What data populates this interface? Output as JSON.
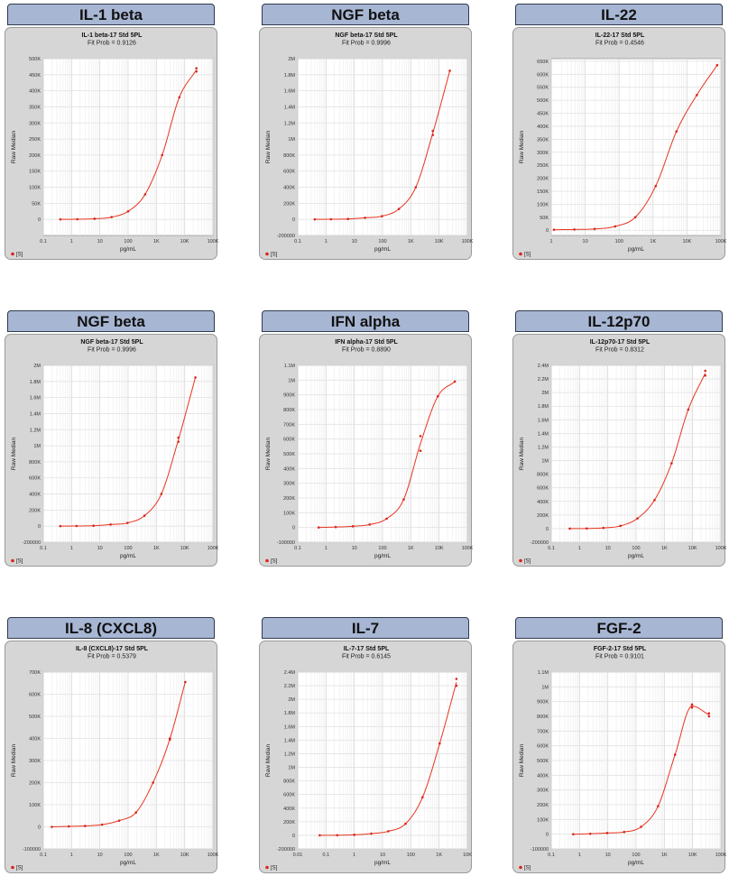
{
  "panels": [
    {
      "header": "IL-1 beta",
      "title": "IL-1 beta-17 Std 5PL",
      "fit": "Fit Prob = 0.9126"
    },
    {
      "header": "NGF beta",
      "title": "NGF beta-17 Std 5PL",
      "fit": "Fit Prob = 0.9996"
    },
    {
      "header": "IL-22",
      "title": "IL-22-17 Std 5PL",
      "fit": "Fit Prob = 0.4546"
    },
    {
      "header": "NGF beta",
      "title": "NGF beta-17 Std 5PL",
      "fit": "Fit Prob = 0.9996"
    },
    {
      "header": "IFN alpha",
      "title": "IFN alpha-17 Std 5PL",
      "fit": "Fit Prob = 0.8890"
    },
    {
      "header": "IL-12p70",
      "title": "IL-12p70-17 Std 5PL",
      "fit": "Fit Prob = 0.8312"
    },
    {
      "header": "IL-8 (CXCL8)",
      "title": "IL-8 (CXCL8)-17 Std 5PL",
      "fit": "Fit Prob = 0.5379"
    },
    {
      "header": "IL-7",
      "title": "IL-7-17 Std 5PL",
      "fit": "Fit Prob = 0.6145"
    },
    {
      "header": "FGF-2",
      "title": "FGF-2-17 Std 5PL",
      "fit": "Fit Prob = 0.9101"
    }
  ],
  "legend_label": "[S]",
  "colors": {
    "curve": "#e8331f",
    "point": "#d9261a",
    "grid": "#e2e2e2",
    "header_bg": "#a7b6d3",
    "panel_bg": "#d6d6d6"
  },
  "chart_data": [
    {
      "type": "scatter",
      "title": "IL-1 beta-17 Std 5PL",
      "xlabel": "pg/mL",
      "ylabel": "Raw Median",
      "x_scale": "log",
      "xlim": [
        0.1,
        100000
      ],
      "ylim": [
        -50000,
        500000
      ],
      "x_ticks": [
        0.1,
        1,
        10,
        100,
        1000,
        10000,
        100000
      ],
      "x_tick_labels": [
        "0.1",
        "1",
        "10",
        "100",
        "1K",
        "10K",
        "100K"
      ],
      "y_ticks": [
        0,
        50000,
        100000,
        150000,
        200000,
        250000,
        300000,
        350000,
        400000,
        450000,
        500000
      ],
      "y_tick_labels": [
        "0",
        "50K",
        "100K",
        "150K",
        "200K",
        "250K",
        "300K",
        "350K",
        "400K",
        "450K",
        "500K"
      ],
      "series": [
        {
          "name": "[S]",
          "x": [
            0.4,
            1.6,
            6.5,
            26,
            100,
            400,
            1600,
            6500,
            26000,
            26000
          ],
          "y": [
            0,
            500,
            2000,
            7000,
            25000,
            78000,
            200000,
            380000,
            460000,
            470000
          ]
        }
      ]
    },
    {
      "type": "scatter",
      "title": "NGF beta-17 Std 5PL",
      "xlabel": "pg/mL",
      "ylabel": "Raw Median",
      "x_scale": "log",
      "xlim": [
        0.1,
        100000
      ],
      "ylim": [
        -200000,
        2000000
      ],
      "x_ticks": [
        0.1,
        1,
        10,
        100,
        1000,
        10000,
        100000
      ],
      "x_tick_labels": [
        "0.1",
        "1",
        "10",
        "100",
        "1K",
        "10K",
        "100K"
      ],
      "y_ticks": [
        -200000,
        0,
        200000,
        400000,
        600000,
        800000,
        1000000,
        1200000,
        1400000,
        1600000,
        1800000,
        2000000
      ],
      "y_tick_labels": [
        "-200000",
        "0",
        "200K",
        "400K",
        "600K",
        "800K",
        "1M",
        "1.2M",
        "1.4M",
        "1.6M",
        "1.8M",
        "2M"
      ],
      "series": [
        {
          "name": "[S]",
          "x": [
            0.4,
            1.5,
            6,
            24,
            95,
            380,
            1500,
            6000,
            6000,
            24000
          ],
          "y": [
            0,
            2000,
            5000,
            20000,
            40000,
            130000,
            400000,
            1050000,
            1100000,
            1850000
          ]
        }
      ]
    },
    {
      "type": "scatter",
      "title": "IL-22-17 Std 5PL",
      "xlabel": "pg/mL",
      "ylabel": "Raw Median",
      "x_scale": "log",
      "xlim": [
        1,
        100000
      ],
      "ylim": [
        -20000,
        660000
      ],
      "x_ticks": [
        1,
        10,
        100,
        1000,
        10000,
        100000
      ],
      "x_tick_labels": [
        "1",
        "10",
        "100",
        "1K",
        "10K",
        "100K"
      ],
      "y_ticks": [
        0,
        50000,
        100000,
        150000,
        200000,
        250000,
        300000,
        350000,
        400000,
        450000,
        500000,
        550000,
        600000,
        650000
      ],
      "y_tick_labels": [
        "0",
        "50K",
        "100K",
        "150K",
        "200K",
        "250K",
        "300K",
        "350K",
        "400K",
        "450K",
        "500K",
        "550K",
        "600K",
        "650K"
      ],
      "series": [
        {
          "name": "[S]",
          "x": [
            1.2,
            4.8,
            19,
            77,
            300,
            1200,
            4900,
            19500,
            78000
          ],
          "y": [
            2000,
            3000,
            5000,
            15000,
            50000,
            170000,
            380000,
            520000,
            635000
          ]
        }
      ]
    },
    {
      "type": "scatter",
      "title": "NGF beta-17 Std 5PL",
      "xlabel": "pg/mL",
      "ylabel": "Raw Median",
      "x_scale": "log",
      "xlim": [
        0.1,
        100000
      ],
      "ylim": [
        -200000,
        2000000
      ],
      "x_ticks": [
        0.1,
        1,
        10,
        100,
        1000,
        10000,
        100000
      ],
      "x_tick_labels": [
        "0.1",
        "1",
        "10",
        "100",
        "1K",
        "10K",
        "100K"
      ],
      "y_ticks": [
        -200000,
        0,
        200000,
        400000,
        600000,
        800000,
        1000000,
        1200000,
        1400000,
        1600000,
        1800000,
        2000000
      ],
      "y_tick_labels": [
        "-200000",
        "0",
        "200K",
        "400K",
        "600K",
        "800K",
        "1M",
        "1.2M",
        "1.4M",
        "1.6M",
        "1.8M",
        "2M"
      ],
      "series": [
        {
          "name": "[S]",
          "x": [
            0.4,
            1.5,
            6,
            24,
            95,
            380,
            1500,
            6000,
            6000,
            24000
          ],
          "y": [
            0,
            2000,
            5000,
            20000,
            40000,
            130000,
            400000,
            1050000,
            1100000,
            1850000
          ]
        }
      ]
    },
    {
      "type": "scatter",
      "title": "IFN alpha-17 Std 5PL",
      "xlabel": "pg/mL",
      "ylabel": "Raw Median",
      "x_scale": "log",
      "xlim": [
        0.1,
        100000
      ],
      "ylim": [
        -100000,
        1100000
      ],
      "x_ticks": [
        0.1,
        1,
        10,
        100,
        1000,
        10000,
        100000
      ],
      "x_tick_labels": [
        "0.1",
        "1",
        "10",
        "100",
        "1K",
        "10K",
        "100K"
      ],
      "y_ticks": [
        -100000,
        0,
        100000,
        200000,
        300000,
        400000,
        500000,
        600000,
        700000,
        800000,
        900000,
        1000000,
        1100000
      ],
      "y_tick_labels": [
        "-100000",
        "0",
        "100K",
        "200K",
        "300K",
        "400K",
        "500K",
        "600K",
        "700K",
        "800K",
        "900K",
        "1M",
        "1.1M"
      ],
      "series": [
        {
          "name": "[S]",
          "x": [
            0.55,
            2.2,
            9,
            35,
            140,
            560,
            2200,
            2200,
            9000,
            36000
          ],
          "y": [
            0,
            3000,
            8000,
            20000,
            60000,
            190000,
            520000,
            620000,
            890000,
            990000
          ]
        }
      ]
    },
    {
      "type": "scatter",
      "title": "IL-12p70-17 Std 5PL",
      "xlabel": "pg/mL",
      "ylabel": "Raw Median",
      "x_scale": "log",
      "xlim": [
        0.1,
        100000
      ],
      "ylim": [
        -200000,
        2400000
      ],
      "x_ticks": [
        0.1,
        1,
        10,
        100,
        1000,
        10000,
        100000
      ],
      "x_tick_labels": [
        "0.1",
        "1",
        "10",
        "100",
        "1K",
        "10K",
        "100K"
      ],
      "y_ticks": [
        -200000,
        0,
        200000,
        400000,
        600000,
        800000,
        1000000,
        1200000,
        1400000,
        1600000,
        1800000,
        2000000,
        2200000,
        2400000
      ],
      "y_tick_labels": [
        "-200000",
        "0",
        "200K",
        "400K",
        "600K",
        "800K",
        "1M",
        "1.2M",
        "1.4M",
        "1.6M",
        "1.8M",
        "2M",
        "2.2M",
        "2.4M"
      ],
      "series": [
        {
          "name": "[S]",
          "x": [
            0.45,
            1.8,
            7,
            28,
            112,
            450,
            1800,
            7000,
            28000,
            28000
          ],
          "y": [
            0,
            2000,
            10000,
            40000,
            150000,
            420000,
            960000,
            1750000,
            2250000,
            2320000
          ]
        }
      ]
    },
    {
      "type": "scatter",
      "title": "IL-8 (CXCL8)-17 Std 5PL",
      "xlabel": "pg/mL",
      "ylabel": "Raw Median",
      "x_scale": "log",
      "xlim": [
        0.1,
        100000
      ],
      "ylim": [
        -100000,
        700000
      ],
      "x_ticks": [
        0.1,
        1,
        10,
        100,
        1000,
        10000,
        100000
      ],
      "x_tick_labels": [
        "0.1",
        "1",
        "10",
        "100",
        "1K",
        "10K",
        "100K"
      ],
      "y_ticks": [
        -100000,
        0,
        100000,
        200000,
        300000,
        400000,
        500000,
        600000,
        700000
      ],
      "y_tick_labels": [
        "-100000",
        "0",
        "100K",
        "200K",
        "300K",
        "400K",
        "500K",
        "600K",
        "700K"
      ],
      "series": [
        {
          "name": "[S]",
          "x": [
            0.2,
            0.8,
            3,
            12,
            48,
            190,
            760,
            3000,
            3000,
            10500
          ],
          "y": [
            0,
            2000,
            4000,
            10000,
            28000,
            65000,
            200000,
            395000,
            400000,
            655000
          ]
        }
      ]
    },
    {
      "type": "scatter",
      "title": "IL-7-17 Std 5PL",
      "xlabel": "pg/mL",
      "ylabel": "Raw Median",
      "x_scale": "log",
      "xlim": [
        0.01,
        10000
      ],
      "ylim": [
        -200000,
        2400000
      ],
      "x_ticks": [
        0.01,
        0.1,
        1,
        10,
        100,
        1000,
        10000
      ],
      "x_tick_labels": [
        "0.01",
        "0.1",
        "1",
        "10",
        "100",
        "1K",
        "10K"
      ],
      "y_ticks": [
        -200000,
        0,
        200000,
        400000,
        600000,
        800000,
        1000000,
        1200000,
        1400000,
        1600000,
        1800000,
        2000000,
        2200000,
        2400000
      ],
      "y_tick_labels": [
        "-200000",
        "0",
        "200K",
        "400K",
        "600K",
        "800K",
        "1M",
        "1.2M",
        "1.4M",
        "1.6M",
        "1.8M",
        "2M",
        "2.2M",
        "2.4M"
      ],
      "series": [
        {
          "name": "[S]",
          "x": [
            0.06,
            0.25,
            1,
            4,
            16,
            65,
            260,
            1050,
            4100,
            4100
          ],
          "y": [
            0,
            2000,
            8000,
            25000,
            60000,
            170000,
            560000,
            1350000,
            2200000,
            2300000
          ]
        }
      ]
    },
    {
      "type": "scatter",
      "title": "FGF-2-17 Std 5PL",
      "xlabel": "pg/mL",
      "ylabel": "Raw Median",
      "x_scale": "log",
      "xlim": [
        0.1,
        100000
      ],
      "ylim": [
        -100000,
        1100000
      ],
      "x_ticks": [
        0.1,
        1,
        10,
        100,
        1000,
        10000,
        100000
      ],
      "x_tick_labels": [
        "0.1",
        "1",
        "10",
        "100",
        "1K",
        "10K",
        "100K"
      ],
      "y_ticks": [
        -100000,
        0,
        100000,
        200000,
        300000,
        400000,
        500000,
        600000,
        700000,
        800000,
        900000,
        1000000,
        1100000
      ],
      "y_tick_labels": [
        "-100000",
        "0",
        "100K",
        "200K",
        "300K",
        "400K",
        "500K",
        "600K",
        "700K",
        "800K",
        "900K",
        "1M",
        "1.1M"
      ],
      "series": [
        {
          "name": "[S]",
          "x": [
            0.6,
            2.4,
            9.5,
            38,
            150,
            600,
            2400,
            9500,
            9500,
            38000,
            38000
          ],
          "y": [
            0,
            3000,
            8000,
            15000,
            50000,
            190000,
            540000,
            860000,
            880000,
            800000,
            820000
          ]
        }
      ]
    }
  ]
}
